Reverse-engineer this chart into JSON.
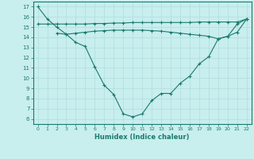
{
  "line1_x": [
    0,
    1,
    2,
    3,
    4,
    5,
    6,
    7,
    8,
    9,
    10,
    11,
    12,
    13,
    14,
    15,
    16,
    17,
    18,
    19,
    20,
    21,
    22
  ],
  "line1_y": [
    15.3,
    15.3,
    15.3,
    15.3,
    15.3,
    15.3,
    15.35,
    15.35,
    15.4,
    15.4,
    15.45,
    15.45,
    15.45,
    15.45,
    15.45,
    15.45,
    15.45,
    15.5,
    15.5,
    15.5,
    15.5,
    15.5,
    15.8
  ],
  "line2_x": [
    2,
    3,
    4,
    5,
    6,
    7,
    8,
    9,
    10,
    11,
    12,
    13,
    14,
    15,
    16,
    17,
    18,
    19,
    20,
    21,
    22
  ],
  "line2_y": [
    14.4,
    14.3,
    14.4,
    14.5,
    14.6,
    14.65,
    14.7,
    14.7,
    14.7,
    14.7,
    14.65,
    14.6,
    14.5,
    14.4,
    14.3,
    14.2,
    14.1,
    13.85,
    14.1,
    14.5,
    15.8
  ],
  "line3_x": [
    0,
    1,
    2,
    3,
    4,
    5,
    6,
    7,
    8,
    9,
    10,
    11,
    12,
    13,
    14,
    15,
    16,
    17,
    18,
    19,
    20,
    21,
    22
  ],
  "line3_y": [
    17.0,
    15.8,
    15.0,
    14.3,
    13.5,
    13.1,
    11.1,
    9.3,
    8.4,
    6.5,
    6.2,
    6.5,
    7.8,
    8.5,
    8.5,
    9.5,
    10.2,
    11.4,
    12.1,
    13.85,
    14.1,
    15.3,
    15.8
  ],
  "line_color": "#1a7a6e",
  "bg_color": "#c8eeee",
  "grid_color": "#b0dddd",
  "xlabel": "Humidex (Indice chaleur)",
  "xlim": [
    -0.5,
    22.5
  ],
  "ylim": [
    5.5,
    17.5
  ],
  "yticks": [
    6,
    7,
    8,
    9,
    10,
    11,
    12,
    13,
    14,
    15,
    16,
    17
  ],
  "xticks": [
    0,
    1,
    2,
    3,
    4,
    5,
    6,
    7,
    8,
    9,
    10,
    11,
    12,
    13,
    14,
    15,
    16,
    17,
    18,
    19,
    20,
    21,
    22
  ],
  "marker": "+",
  "marker_size": 3.5,
  "line_width": 0.8
}
